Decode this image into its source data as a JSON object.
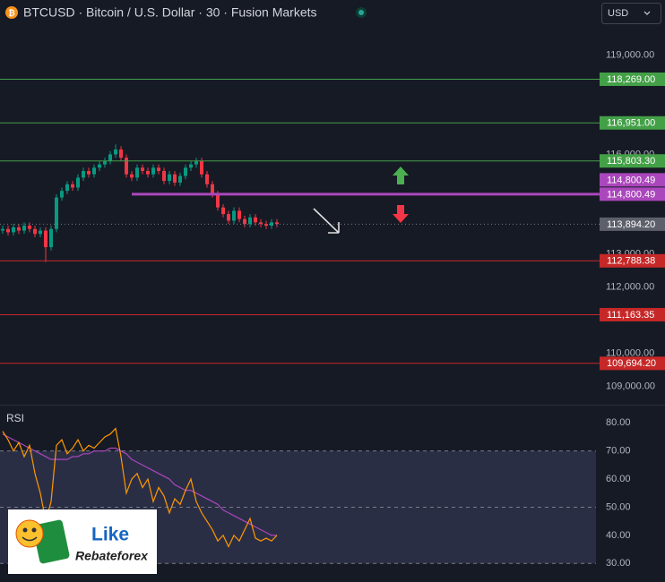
{
  "header": {
    "symbol_title": "BTCUSD · Bitcoin / U.S. Dollar · 30 · Fusion Markets",
    "currency": "USD"
  },
  "logo": {
    "word1": "Like",
    "word2": "Rebateforex"
  },
  "chart_data": [
    {
      "type": "candlestick",
      "up_color": "#089981",
      "down_color": "#f23645",
      "open": [
        113700,
        113750,
        113650,
        113800,
        113700,
        113850,
        113750,
        113600,
        113700,
        113200,
        113750,
        114700,
        114900,
        115100,
        115000,
        115300,
        115500,
        115400,
        115600,
        115700,
        115800,
        116000,
        116150,
        115900,
        115400,
        115300,
        115600,
        115500,
        115400,
        115600,
        115500,
        115200,
        115400,
        115150,
        115350,
        115600,
        115700,
        115800,
        115400,
        115100,
        114800,
        114400,
        114200,
        114000,
        114300,
        114050,
        113900,
        114100,
        113950,
        113900,
        113850,
        113950
      ],
      "high": [
        113850,
        113850,
        113900,
        113900,
        113950,
        113950,
        113850,
        113800,
        113800,
        113850,
        114800,
        115000,
        115200,
        115200,
        115400,
        115600,
        115600,
        115700,
        115800,
        115900,
        116100,
        116300,
        116250,
        116000,
        115500,
        115700,
        115700,
        115600,
        115700,
        115700,
        115600,
        115500,
        115500,
        115450,
        115700,
        115800,
        115900,
        115900,
        115500,
        115200,
        114900,
        114500,
        114300,
        114400,
        114400,
        114150,
        114200,
        114200,
        114050,
        114000,
        114050,
        114050
      ],
      "low": [
        113600,
        113550,
        113550,
        113600,
        113600,
        113650,
        113500,
        113500,
        112750,
        113100,
        113650,
        114600,
        114800,
        114900,
        114900,
        115200,
        115300,
        115300,
        115500,
        115600,
        115700,
        115900,
        115800,
        115300,
        115200,
        115200,
        115400,
        115300,
        115300,
        115400,
        115100,
        115100,
        115050,
        115050,
        115250,
        115500,
        115600,
        115300,
        115000,
        114700,
        114300,
        114100,
        113900,
        113900,
        113950,
        113800,
        113800,
        113850,
        113800,
        113750,
        113750,
        113800
      ],
      "close": [
        113750,
        113650,
        113800,
        113700,
        113850,
        113750,
        113600,
        113700,
        113200,
        113750,
        114700,
        114900,
        115100,
        115000,
        115300,
        115500,
        115400,
        115600,
        115700,
        115800,
        116000,
        116150,
        115900,
        115400,
        115300,
        115600,
        115500,
        115400,
        115600,
        115500,
        115200,
        115400,
        115150,
        115350,
        115600,
        115700,
        115800,
        115400,
        115100,
        114800,
        114400,
        114200,
        114000,
        114300,
        114050,
        113900,
        114100,
        113950,
        113900,
        113850,
        113950,
        113900
      ],
      "ylim": [
        108500,
        119850
      ],
      "yticks": [
        {
          "value": 119000,
          "label": "119,000.00"
        },
        {
          "value": 116000,
          "label": "116,000.00"
        },
        {
          "value": 113000,
          "label": "113,000.00"
        },
        {
          "value": 112000,
          "label": "112,000.00"
        },
        {
          "value": 110000,
          "label": "110,000.00"
        },
        {
          "value": 109000,
          "label": "109,000.00"
        }
      ],
      "levels": [
        {
          "value": 118269.0,
          "label": "118,269.00",
          "color": "#43a047"
        },
        {
          "value": 116951.0,
          "label": "116,951.00",
          "color": "#43a047"
        },
        {
          "value": 115803.3,
          "label": "115,803.30",
          "color": "#43a047"
        },
        {
          "value": 114800.49,
          "label": "114,800.49",
          "color": "#ab47bc"
        },
        {
          "value": 112788.38,
          "label": "112,788.38",
          "color": "#c62828"
        },
        {
          "value": 111163.35,
          "label": "111,163.35",
          "color": "#c62828"
        },
        {
          "value": 109694.2,
          "label": "109,694.20",
          "color": "#c62828"
        }
      ],
      "current": {
        "value": 113894.2,
        "label": "113,894.20",
        "color": "#5d606b"
      }
    },
    {
      "type": "line",
      "title": "RSI",
      "series": [
        {
          "color": "#ff9800",
          "values": [
            77,
            74,
            70,
            73,
            68,
            72,
            62,
            55,
            45,
            52,
            72,
            74,
            69,
            71,
            74,
            70,
            72,
            71,
            73,
            75,
            76,
            78,
            68,
            55,
            60,
            62,
            57,
            60,
            52,
            57,
            54,
            48,
            53,
            51,
            56,
            60,
            52,
            48,
            45,
            42,
            38,
            40,
            36,
            40,
            38,
            42,
            46,
            39,
            38,
            39,
            38,
            40
          ]
        },
        {
          "color": "#ab47bc",
          "values": [
            76,
            75,
            74,
            73,
            72,
            71,
            70,
            69,
            68,
            67,
            67,
            67,
            67,
            68,
            68,
            69,
            69,
            70,
            70,
            70,
            71,
            71,
            70,
            69,
            67,
            66,
            65,
            64,
            63,
            62,
            61,
            60,
            58,
            57,
            56,
            56,
            55,
            54,
            53,
            52,
            51,
            49,
            48,
            47,
            46,
            45,
            44,
            43,
            42,
            41,
            40,
            40
          ]
        }
      ],
      "ylim": [
        25,
        85.5
      ],
      "yticks": [
        {
          "value": 80,
          "label": "80.00"
        },
        {
          "value": 70,
          "label": "70.00"
        },
        {
          "value": 60,
          "label": "60.00"
        },
        {
          "value": 50,
          "label": "50.00"
        },
        {
          "value": 40,
          "label": "40.00"
        },
        {
          "value": 30,
          "label": "30.00"
        }
      ],
      "hlines": [
        70,
        50,
        30
      ],
      "band": [
        30,
        70
      ],
      "band_color": "#2a2e45"
    }
  ]
}
